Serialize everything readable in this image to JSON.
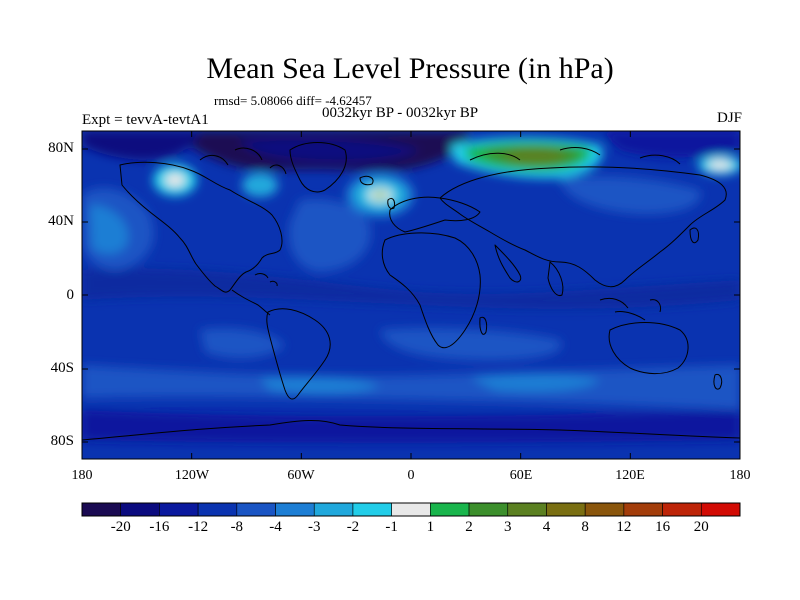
{
  "title": "Mean Sea Level Pressure (in hPa)",
  "stats_text": "rmsd= 5.08066 diff= -4.62457",
  "subtitle": "0032kyr BP - 0032kyr BP",
  "left_header": "Expt = tevvA-tevtA1",
  "season": "DJF",
  "lat_labels": [
    "80N",
    "40N",
    "0",
    "40S",
    "80S"
  ],
  "lon_labels": [
    "180",
    "120W",
    "60W",
    "0",
    "60E",
    "120E",
    "180"
  ],
  "colorbar": {
    "colors": [
      "#1a0a52",
      "#0b0b7f",
      "#0a199e",
      "#0a33b0",
      "#1a55c4",
      "#1d7ed4",
      "#20a8dc",
      "#22cde8",
      "#e8e8e8",
      "#19b54c",
      "#3c8f2c",
      "#5b8021",
      "#7a6f12",
      "#8a560c",
      "#a33d0a",
      "#bd2408",
      "#d20b04"
    ],
    "labels": [
      "-20",
      "-16",
      "-12",
      "-8",
      "-4",
      "-3",
      "-2",
      "-1",
      "1",
      "2",
      "3",
      "4",
      "8",
      "12",
      "16",
      "20"
    ]
  }
}
